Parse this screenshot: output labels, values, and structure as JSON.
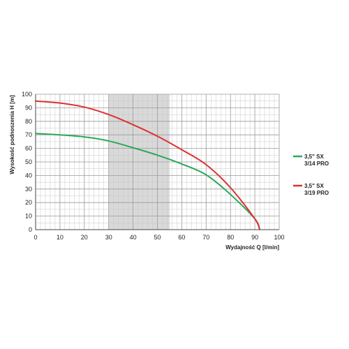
{
  "chart_data": {
    "type": "line",
    "xlabel": "Wydajność Q [l/min]",
    "ylabel": "Wysokość podnoszenia H [m]",
    "xlim": [
      0,
      100
    ],
    "ylim": [
      0,
      100
    ],
    "x_ticks": [
      "0",
      "10",
      "20",
      "30",
      "40",
      "50",
      "60",
      "70",
      "80",
      "90",
      "100"
    ],
    "y_ticks": [
      "0",
      "10",
      "20",
      "30",
      "40",
      "50",
      "60",
      "70",
      "80",
      "90",
      "100"
    ],
    "grid": true,
    "shaded_range": {
      "x_from": 30,
      "x_to": 55
    },
    "legend_position": "right",
    "series": [
      {
        "name": "3,5\" SX 3/14 PRO",
        "name_lines": [
          "3,5\" SX",
          "3/14 PRO"
        ],
        "color": "#2aa85a",
        "x": [
          0,
          10,
          20,
          30,
          40,
          50,
          60,
          70,
          80,
          90,
          92
        ],
        "y": [
          71,
          70,
          68.5,
          65.5,
          60.5,
          55,
          48.5,
          40.5,
          26,
          8,
          0
        ]
      },
      {
        "name": "3,5\" SX 3/19 PRO",
        "name_lines": [
          "3,5\" SX",
          "3/19 PRO"
        ],
        "color": "#e03030",
        "x": [
          0,
          10,
          20,
          30,
          40,
          50,
          60,
          70,
          80,
          90,
          92
        ],
        "y": [
          95,
          93.5,
          90.5,
          85,
          77.5,
          69,
          59,
          48,
          31,
          8,
          0
        ]
      }
    ]
  }
}
